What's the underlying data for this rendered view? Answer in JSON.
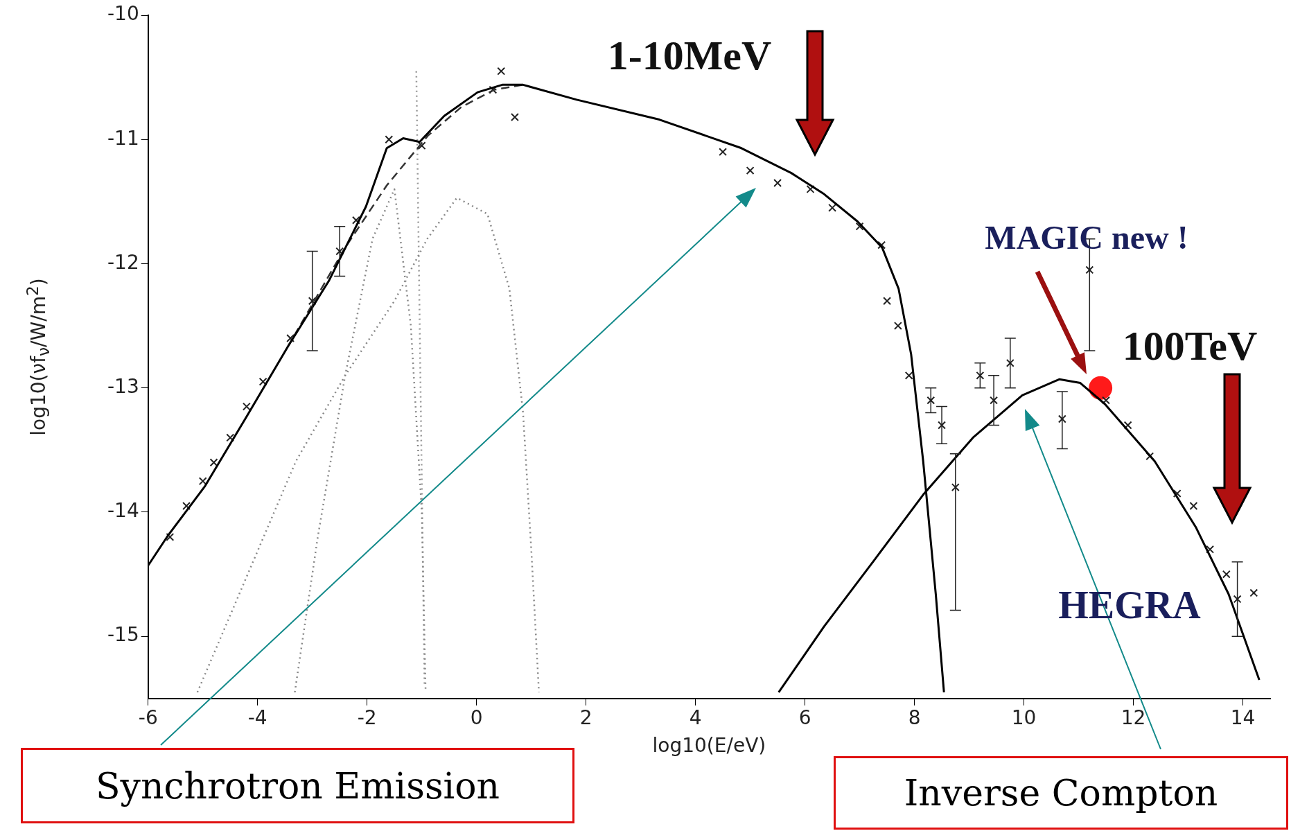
{
  "chart_data": {
    "type": "line",
    "xlabel": "log10(E/eV)",
    "ylabel": "log10(νf$_{ν}$/W/m$^{2}$)",
    "xlim": [
      -6,
      14.5
    ],
    "ylim": [
      -15.5,
      -10
    ],
    "xticks": [
      -6,
      -4,
      -2,
      0,
      2,
      4,
      6,
      8,
      10,
      12,
      14
    ],
    "yticks": [
      -15,
      -14,
      -13,
      -12,
      -11,
      -10
    ],
    "series": [
      {
        "type": "line",
        "color": "#000000",
        "line_style": "solid",
        "x": [
          -6,
          -5.64,
          -4.96,
          -4.2,
          -3.45,
          -2.7,
          -2.02,
          -1.64,
          -1.34,
          -1.04,
          -0.59,
          0.02,
          0.47,
          0.85,
          1.83,
          3.34,
          4.84,
          5.75,
          6.35,
          6.96,
          7.41,
          7.71,
          7.94,
          8.16,
          8.39,
          8.54
        ],
        "values": [
          -14.43,
          -14.19,
          -13.79,
          -13.23,
          -12.67,
          -12.14,
          -11.54,
          -11.07,
          -10.99,
          -11.02,
          -10.81,
          -10.62,
          -10.56,
          -10.56,
          -10.68,
          -10.84,
          -11.07,
          -11.27,
          -11.44,
          -11.66,
          -11.87,
          -12.2,
          -12.73,
          -13.59,
          -14.66,
          -15.45
        ]
      },
      {
        "type": "line",
        "color": "#000000",
        "line_style": "solid",
        "x": [
          5.52,
          6.35,
          7.26,
          8.16,
          9.07,
          9.97,
          10.65,
          11.03,
          11.48,
          12.39,
          13.14,
          13.74,
          14.3
        ],
        "values": [
          -15.45,
          -14.92,
          -14.39,
          -13.86,
          -13.4,
          -13.06,
          -12.93,
          -12.96,
          -13.13,
          -13.59,
          -14.12,
          -14.66,
          -15.35
        ]
      },
      {
        "type": "line",
        "color": "#333333",
        "line_style": "dashed",
        "x": [
          -3.45,
          -2.4,
          -1.64,
          -0.89,
          -0.28,
          0.32,
          0.85
        ],
        "values": [
          -12.67,
          -11.87,
          -11.37,
          -10.97,
          -10.74,
          -10.6,
          -10.56
        ]
      },
      {
        "type": "line",
        "color": "#888888",
        "line_style": "dotted",
        "x": [
          -5.1,
          -4.2,
          -3.3,
          -2.4,
          -1.5,
          -0.9,
          -0.36,
          0.2,
          0.6,
          0.85,
          1.0,
          1.14
        ],
        "values": [
          -15.45,
          -14.52,
          -13.59,
          -12.9,
          -12.3,
          -11.8,
          -11.47,
          -11.6,
          -12.2,
          -13.2,
          -14.3,
          -15.45
        ]
      },
      {
        "type": "line",
        "color": "#888888",
        "line_style": "dotted",
        "x": [
          -3.32,
          -2.9,
          -2.4,
          -1.9,
          -1.5,
          -1.2,
          -1.0,
          -0.93
        ],
        "values": [
          -15.45,
          -14.2,
          -12.9,
          -11.8,
          -11.4,
          -12.5,
          -14.0,
          -15.45
        ]
      },
      {
        "type": "line",
        "color": "#999999",
        "line_style": "dotted",
        "x": [
          -1.1,
          -0.95
        ],
        "values": [
          -10.45,
          -15.4
        ]
      },
      {
        "type": "scatter",
        "color": "#222222",
        "marker": "cross",
        "x": [
          -5.6,
          -5.3,
          -5.0,
          -4.8,
          -4.5,
          -4.2,
          -3.9,
          -3.4,
          -3.0,
          -2.5,
          -2.2,
          -1.6,
          -1.0,
          0.3,
          0.45,
          0.7,
          4.5,
          5.0,
          5.5,
          6.1,
          6.5,
          7.0,
          7.4,
          7.5,
          7.7,
          7.9,
          8.3,
          8.5,
          8.75,
          9.2,
          9.45,
          9.75,
          10.7,
          11.2,
          11.5,
          11.9,
          12.3,
          12.8,
          13.1,
          13.4,
          13.7,
          13.9,
          14.2
        ],
        "values": [
          -14.2,
          -13.95,
          -13.75,
          -13.6,
          -13.4,
          -13.15,
          -12.95,
          -12.6,
          -12.3,
          -11.9,
          -11.65,
          -11.0,
          -11.05,
          -10.6,
          -10.45,
          -10.82,
          -11.1,
          -11.25,
          -11.35,
          -11.4,
          -11.55,
          -11.7,
          -11.85,
          -12.3,
          -12.5,
          -12.9,
          -13.1,
          -13.3,
          -13.8,
          -12.9,
          -13.1,
          -12.8,
          -13.25,
          -12.05,
          -13.1,
          -13.3,
          -13.55,
          -13.85,
          -13.95,
          -14.3,
          -14.5,
          -14.7,
          -14.65
        ],
        "errors": [
          null,
          null,
          null,
          null,
          null,
          null,
          null,
          null,
          0.4,
          0.2,
          null,
          null,
          null,
          null,
          null,
          null,
          null,
          null,
          null,
          null,
          null,
          null,
          null,
          null,
          null,
          null,
          0.1,
          0.15,
          [
            -14.79,
            -13.53
          ],
          0.1,
          0.2,
          0.2,
          [
            -13.49,
            -13.03
          ],
          [
            -12.7,
            -11.8
          ],
          null,
          null,
          null,
          null,
          null,
          null,
          null,
          [
            -15.0,
            -14.4
          ],
          null
        ]
      },
      {
        "type": "scatter",
        "color": "#ff1a1a",
        "marker": "circle",
        "x": [
          11.4
        ],
        "values": [
          -13.0
        ]
      }
    ],
    "annotations": [
      "1-10MeV",
      "MAGIC new !",
      "100TeV",
      "HEGRA",
      "Synchrotron Emission",
      "Inverse Compton"
    ]
  }
}
